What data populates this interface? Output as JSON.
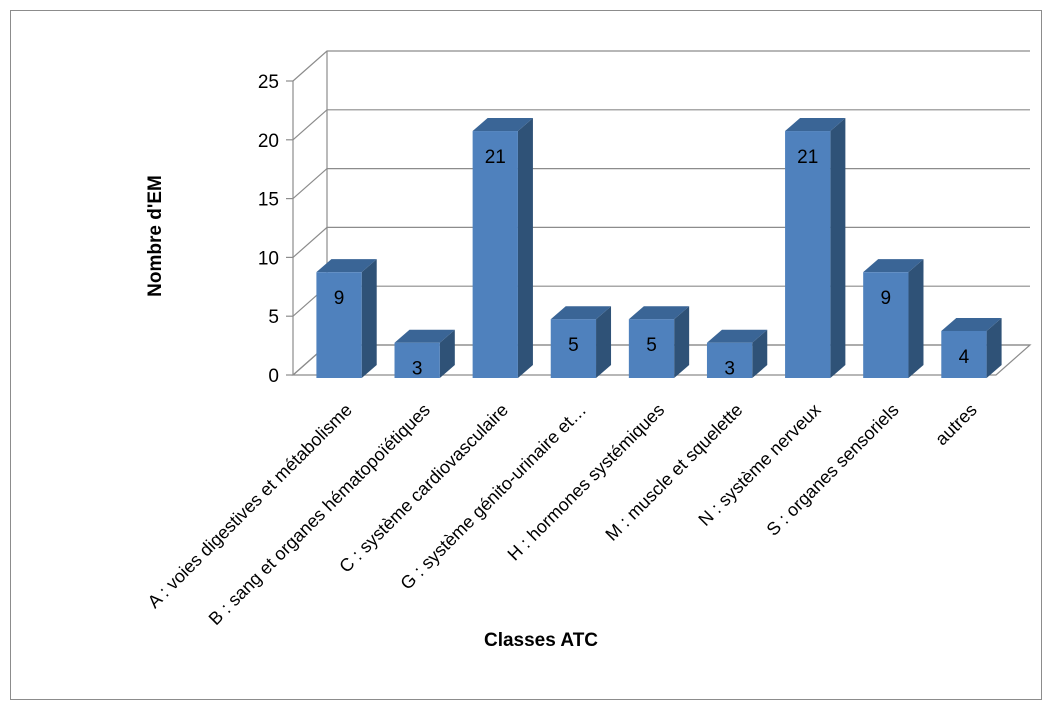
{
  "chart_data": {
    "type": "bar",
    "style": "3d-clustered-column",
    "title": "",
    "xlabel": "Classes ATC",
    "ylabel": "Nombre d'EM",
    "ylim": [
      0,
      25
    ],
    "yticks": [
      0,
      5,
      10,
      15,
      20,
      25
    ],
    "grid": true,
    "legend": "none",
    "categories": [
      "A : voies digestives et métabolisme",
      "B : sang et organes hématopoïétiques",
      "C : système cardiovasculaire",
      "G : système génito-urinaire et…",
      "H : hormones systémiques",
      "M : muscle et squelette",
      "N : système nerveux",
      "S : organes sensoriels",
      "autres"
    ],
    "values": [
      9,
      3,
      21,
      5,
      5,
      3,
      21,
      9,
      4
    ],
    "colors": {
      "bar_front": "#4f81bd",
      "bar_side": "#2f5277",
      "bar_top": "#3a6596",
      "grid": "#8c8c8c"
    }
  }
}
